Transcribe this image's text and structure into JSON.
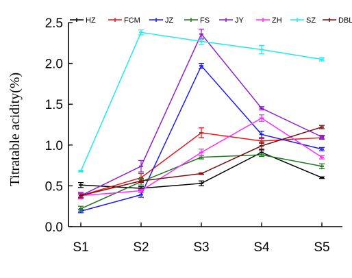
{
  "chart_data": {
    "type": "line",
    "title": "",
    "xlabel": "",
    "ylabel": "Titratable acidity(%)",
    "categories": [
      "S1",
      "S2",
      "S3",
      "S4",
      "S5"
    ],
    "ylim": [
      0.0,
      2.5
    ],
    "yticks": [
      "0.0",
      "0.5",
      "1.0",
      "1.5",
      "2.0",
      "2.5"
    ],
    "grid": false,
    "legend_position": "top",
    "series": [
      {
        "name": "HZ",
        "color": "#000000",
        "values": [
          0.51,
          0.47,
          0.53,
          0.91,
          0.6
        ],
        "errors": [
          0.03,
          0.02,
          0.03,
          0.03,
          0.01
        ]
      },
      {
        "name": "FCM",
        "color": "#e8141b",
        "values": [
          0.38,
          0.6,
          1.15,
          1.05,
          1.09
        ],
        "errors": [
          0.03,
          0.05,
          0.06,
          0.03,
          0.02
        ]
      },
      {
        "name": "JZ",
        "color": "#1a1aff",
        "values": [
          0.19,
          0.39,
          1.97,
          1.13,
          0.95
        ],
        "errors": [
          0.02,
          0.03,
          0.03,
          0.04,
          0.02
        ]
      },
      {
        "name": "FS",
        "color": "#1f7a1f",
        "values": [
          0.22,
          0.55,
          0.85,
          0.88,
          0.74
        ],
        "errors": [
          0.03,
          0.04,
          0.02,
          0.02,
          0.03
        ]
      },
      {
        "name": "JY",
        "color": "#8d1fd6",
        "values": [
          0.38,
          0.74,
          2.36,
          1.45,
          1.1
        ],
        "errors": [
          0.04,
          0.07,
          0.06,
          0.02,
          0.02
        ]
      },
      {
        "name": "ZH",
        "color": "#ff2bff",
        "values": [
          0.38,
          0.44,
          0.91,
          1.33,
          0.85
        ],
        "errors": [
          0.03,
          0.02,
          0.04,
          0.04,
          0.02
        ]
      },
      {
        "name": "SZ",
        "color": "#22eaea",
        "values": [
          0.68,
          2.38,
          2.27,
          2.17,
          2.05
        ],
        "errors": [
          0.01,
          0.03,
          0.04,
          0.05,
          0.02
        ]
      },
      {
        "name": "DBL",
        "color": "#7a0e0e",
        "values": [
          0.38,
          0.56,
          0.65,
          0.99,
          1.22
        ],
        "errors": [
          0.02,
          0.02,
          0.01,
          0.04,
          0.02
        ]
      }
    ]
  }
}
